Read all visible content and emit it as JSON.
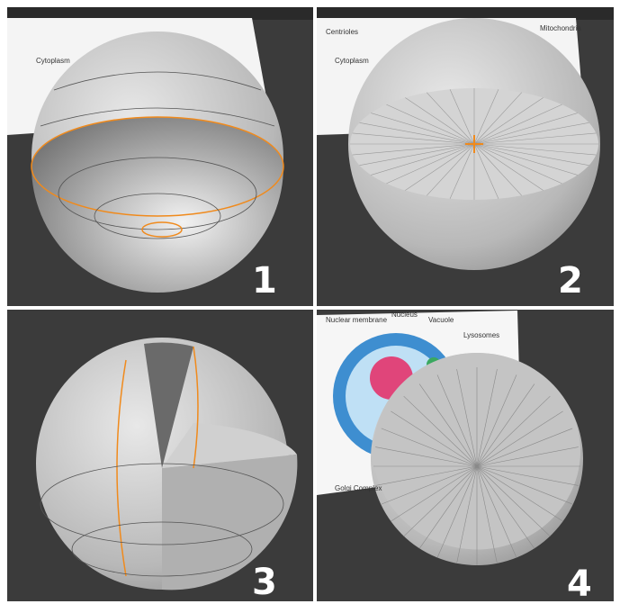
{
  "panels": [
    {
      "number": "1",
      "labels": [
        "Cytoplasm"
      ]
    },
    {
      "number": "2",
      "labels": [
        "Centrioles",
        "Cytoplasm",
        "Mitochondria"
      ]
    },
    {
      "number": "3",
      "labels": []
    },
    {
      "number": "4",
      "labels": [
        "Nuclear membrane",
        "Nucleus",
        "Vacuole",
        "Lysosomes",
        "Golgi Complex"
      ]
    }
  ]
}
